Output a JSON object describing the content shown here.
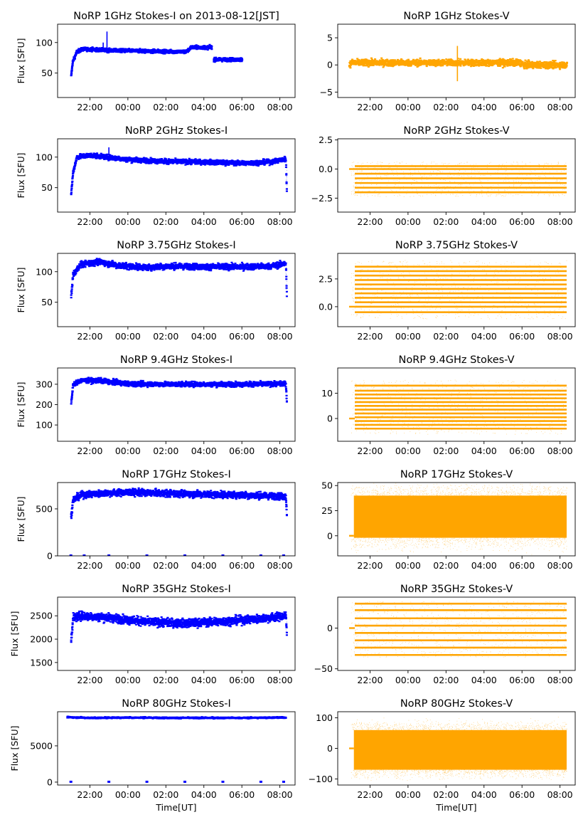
{
  "figure": {
    "x_tick_labels": [
      "22:00",
      "00:00",
      "02:00",
      "04:00",
      "06:00",
      "08:00"
    ],
    "x_tick_hours": [
      22,
      24,
      26,
      28,
      30,
      32
    ],
    "x_range_hours": [
      20.3,
      32.8
    ],
    "data_start_hour": 21.0,
    "data_end_hour": 32.35,
    "xlabel": "Time[UT]",
    "colors": {
      "stokes_i": "#0000ff",
      "stokes_v": "#ffa500"
    }
  },
  "chart_data": [
    {
      "id": "i1",
      "type": "scatter",
      "col": 0,
      "row": 0,
      "title": "NoRP 1GHz Stokes-I on 2013-08-12[JST]",
      "ylabel": "Flux [SFU]",
      "ylim": [
        10,
        130
      ],
      "yticks": [
        50,
        100
      ],
      "ytick_labels": [
        "50",
        "100"
      ],
      "series": {
        "name": "Stokes-I",
        "profile": [
          [
            21.0,
            45
          ],
          [
            21.08,
            68
          ],
          [
            21.3,
            85
          ],
          [
            21.6,
            89
          ],
          [
            22.0,
            89
          ],
          [
            23.0,
            87
          ],
          [
            25.0,
            86
          ],
          [
            26.5,
            85
          ],
          [
            27.1,
            85
          ],
          [
            27.3,
            92
          ],
          [
            28.4,
            92
          ],
          [
            28.45,
            null
          ],
          [
            28.5,
            72
          ],
          [
            30.0,
            72
          ]
        ],
        "spikes": [
          [
            22.9,
            118
          ],
          [
            22.7,
            100
          ]
        ],
        "noise": 1.5
      }
    },
    {
      "id": "v1",
      "type": "scatter",
      "col": 1,
      "row": 0,
      "title": "NoRP 1GHz Stokes-V",
      "ylabel": "",
      "ylim": [
        -6,
        7.5
      ],
      "yticks": [
        -5,
        0,
        5
      ],
      "ytick_labels": [
        "−5",
        "0",
        "5"
      ],
      "series": {
        "name": "Stokes-V",
        "profile": [
          [
            20.9,
            0
          ],
          [
            21.0,
            0.4
          ],
          [
            30.0,
            0.4
          ],
          [
            30.05,
            0
          ],
          [
            32.35,
            0
          ]
        ],
        "spikes": [
          [
            26.6,
            3.5
          ],
          [
            26.6,
            -3.0
          ]
        ],
        "noise": 0.3
      }
    },
    {
      "id": "i2",
      "type": "scatter",
      "col": 0,
      "row": 1,
      "title": "NoRP 2GHz Stokes-I",
      "ylabel": "Flux [SFU]",
      "ylim": [
        10,
        130
      ],
      "yticks": [
        50,
        100
      ],
      "ytick_labels": [
        "50",
        "100"
      ],
      "series": {
        "name": "Stokes-I",
        "profile": [
          [
            21.0,
            40
          ],
          [
            21.1,
            75
          ],
          [
            21.3,
            100
          ],
          [
            22.0,
            103
          ],
          [
            24.0,
            96
          ],
          [
            26.0,
            93
          ],
          [
            28.0,
            92
          ],
          [
            30.0,
            90
          ],
          [
            31.5,
            92
          ],
          [
            32.3,
            97
          ],
          [
            32.35,
            45
          ]
        ],
        "spikes": [
          [
            23.0,
            116
          ],
          [
            22.4,
            107
          ]
        ],
        "noise": 2
      }
    },
    {
      "id": "v2",
      "type": "scatter",
      "col": 1,
      "row": 1,
      "title": "NoRP 2GHz Stokes-V",
      "ylabel": "",
      "ylim": [
        -3.7,
        2.6
      ],
      "yticks": [
        -2.5,
        0.0,
        2.5
      ],
      "ytick_labels": [
        "−2.5",
        "0.0",
        "2.5"
      ],
      "series": {
        "name": "Stokes-V",
        "levels": [
          -2.0,
          -1.6,
          -1.2,
          -0.8,
          -0.4,
          0.0,
          0.25
        ],
        "noise": 0.25
      }
    },
    {
      "id": "i3",
      "type": "scatter",
      "col": 0,
      "row": 2,
      "title": "NoRP 3.75GHz Stokes-I",
      "ylabel": "Flux [SFU]",
      "ylim": [
        10,
        130
      ],
      "yticks": [
        50,
        100
      ],
      "ytick_labels": [
        "50",
        "100"
      ],
      "series": {
        "name": "Stokes-I",
        "profile": [
          [
            21.0,
            60
          ],
          [
            21.1,
            95
          ],
          [
            21.5,
            112
          ],
          [
            22.5,
            116
          ],
          [
            23.5,
            110
          ],
          [
            25.0,
            107
          ],
          [
            26.0,
            109
          ],
          [
            28.0,
            108
          ],
          [
            30.0,
            108
          ],
          [
            31.5,
            109
          ],
          [
            32.3,
            113
          ],
          [
            32.35,
            65
          ]
        ],
        "spikes": [],
        "noise": 2.5
      }
    },
    {
      "id": "v3",
      "type": "scatter",
      "col": 1,
      "row": 2,
      "title": "NoRP 3.75GHz Stokes-V",
      "ylabel": "",
      "ylim": [
        -1.8,
        4.8
      ],
      "yticks": [
        0.0,
        2.5
      ],
      "ytick_labels": [
        "0.0",
        "2.5"
      ],
      "series": {
        "name": "Stokes-V",
        "levels": [
          -0.5,
          0.0,
          0.4,
          0.8,
          1.2,
          1.6,
          2.0,
          2.4,
          2.8,
          3.2,
          3.6
        ],
        "noise": 0.4
      }
    },
    {
      "id": "i4",
      "type": "scatter",
      "col": 0,
      "row": 3,
      "title": "NoRP 9.4GHz Stokes-I",
      "ylabel": "Flux [SFU]",
      "ylim": [
        20,
        380
      ],
      "yticks": [
        100,
        200,
        300
      ],
      "ytick_labels": [
        "100",
        "200",
        "300"
      ],
      "series": {
        "name": "Stokes-I",
        "profile": [
          [
            21.0,
            200
          ],
          [
            21.1,
            300
          ],
          [
            21.5,
            318
          ],
          [
            22.5,
            318
          ],
          [
            24.0,
            302
          ],
          [
            26.0,
            300
          ],
          [
            28.0,
            300
          ],
          [
            30.0,
            300
          ],
          [
            32.3,
            302
          ],
          [
            32.35,
            220
          ]
        ],
        "spikes": [],
        "noise": 6
      }
    },
    {
      "id": "v4",
      "type": "scatter",
      "col": 1,
      "row": 3,
      "title": "NoRP 9.4GHz Stokes-V",
      "ylabel": "",
      "ylim": [
        -9,
        20
      ],
      "yticks": [
        0,
        10
      ],
      "ytick_labels": [
        "0",
        "10"
      ],
      "series": {
        "name": "Stokes-V",
        "levels": [
          -4,
          -2.5,
          -1,
          0.5,
          2,
          3.5,
          5,
          6.5,
          8,
          9.5,
          11,
          13
        ],
        "noise": 1.5
      }
    },
    {
      "id": "i5",
      "type": "scatter",
      "col": 0,
      "row": 4,
      "title": "NoRP 17GHz Stokes-I",
      "ylabel": "Flux [SFU]",
      "ylim": [
        0,
        780
      ],
      "yticks": [
        0,
        500
      ],
      "ytick_labels": [
        "0",
        "500"
      ],
      "series": {
        "name": "Stokes-I",
        "profile": [
          [
            21.0,
            420
          ],
          [
            21.1,
            600
          ],
          [
            21.6,
            650
          ],
          [
            23.0,
            670
          ],
          [
            24.5,
            675
          ],
          [
            26.0,
            665
          ],
          [
            28.0,
            655
          ],
          [
            30.0,
            648
          ],
          [
            32.3,
            630
          ],
          [
            32.35,
            460
          ]
        ],
        "spikes": [],
        "noise": 18,
        "zero_marks": [
          21.0,
          21.7,
          23.0,
          25.0,
          27.0,
          29.0,
          31.0,
          32.2
        ]
      }
    },
    {
      "id": "v5",
      "type": "scatter",
      "col": 1,
      "row": 4,
      "title": "NoRP 17GHz Stokes-V",
      "ylabel": "",
      "ylim": [
        -20,
        53
      ],
      "yticks": [
        0,
        25,
        50
      ],
      "ytick_labels": [
        "0",
        "25",
        "50"
      ],
      "series": {
        "name": "Stokes-V",
        "band": [
          -2,
          40
        ],
        "noise": 4
      }
    },
    {
      "id": "i6",
      "type": "scatter",
      "col": 0,
      "row": 5,
      "title": "NoRP 35GHz Stokes-I",
      "ylabel": "Flux [SFU]",
      "ylim": [
        1330,
        2900
      ],
      "yticks": [
        1500,
        2000,
        2500
      ],
      "ytick_labels": [
        "1500",
        "2000",
        "2500"
      ],
      "series": {
        "name": "Stokes-I",
        "profile": [
          [
            21.0,
            2000
          ],
          [
            21.1,
            2450
          ],
          [
            21.5,
            2500
          ],
          [
            23.0,
            2460
          ],
          [
            25.0,
            2370
          ],
          [
            27.0,
            2340
          ],
          [
            29.0,
            2380
          ],
          [
            31.0,
            2440
          ],
          [
            32.3,
            2500
          ],
          [
            32.35,
            2150
          ]
        ],
        "spikes": [],
        "noise": 45
      }
    },
    {
      "id": "v6",
      "type": "scatter",
      "col": 1,
      "row": 5,
      "title": "NoRP 35GHz Stokes-V",
      "ylabel": "",
      "ylim": [
        -52,
        38
      ],
      "yticks": [
        -50,
        0
      ],
      "ytick_labels": [
        "−50",
        "0"
      ],
      "series": {
        "name": "Stokes-V",
        "levels": [
          -33,
          -24,
          -15,
          -6,
          3,
          12,
          22,
          30
        ],
        "noise": 2
      }
    },
    {
      "id": "i7",
      "type": "scatter",
      "col": 0,
      "row": 6,
      "title": "NoRP 80GHz Stokes-I",
      "ylabel": "Flux [SFU]",
      "xlabel": "Time[UT]",
      "ylim": [
        -400,
        9700
      ],
      "yticks": [
        0,
        5000
      ],
      "ytick_labels": [
        "0",
        "5000"
      ],
      "series": {
        "name": "Stokes-I",
        "profile": [
          [
            20.8,
            8950
          ],
          [
            22.0,
            8850
          ],
          [
            24.0,
            8900
          ],
          [
            26.0,
            8850
          ],
          [
            28.0,
            8850
          ],
          [
            30.0,
            8850
          ],
          [
            32.3,
            8900
          ]
        ],
        "spikes": [],
        "noise": 50,
        "zero_marks": [
          21.0,
          23.0,
          25.0,
          27.0,
          29.0,
          31.0,
          32.2
        ]
      }
    },
    {
      "id": "v7",
      "type": "scatter",
      "col": 1,
      "row": 6,
      "title": "NoRP 80GHz Stokes-V",
      "ylabel": "",
      "xlabel": "Time[UT]",
      "ylim": [
        -120,
        120
      ],
      "yticks": [
        -100,
        0,
        100
      ],
      "ytick_labels": [
        "−100",
        "0",
        "100"
      ],
      "series": {
        "name": "Stokes-V",
        "band": [
          -70,
          60
        ],
        "noise": 10
      }
    }
  ]
}
